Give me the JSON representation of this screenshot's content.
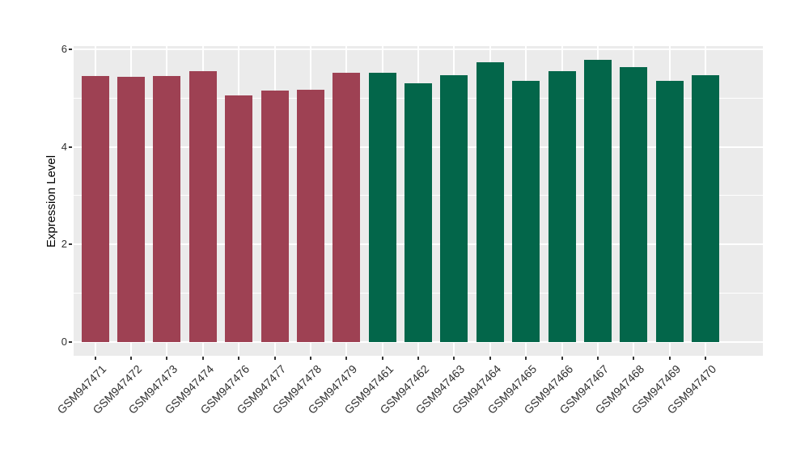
{
  "chart_data": {
    "type": "bar",
    "title": "",
    "xlabel": "",
    "ylabel": "Expression Level",
    "legend_position": "none",
    "grid": "on",
    "categories": [
      "GSM947471",
      "GSM947472",
      "GSM947473",
      "GSM947474",
      "GSM947476",
      "GSM947477",
      "GSM947478",
      "GSM947479",
      "GSM947461",
      "GSM947462",
      "GSM947463",
      "GSM947464",
      "GSM947465",
      "GSM947466",
      "GSM947467",
      "GSM947468",
      "GSM947469",
      "GSM947470"
    ],
    "values": [
      5.46,
      5.44,
      5.45,
      5.55,
      5.06,
      5.15,
      5.17,
      5.52,
      5.52,
      5.3,
      5.48,
      5.73,
      5.36,
      5.56,
      5.78,
      5.63,
      5.35,
      5.47
    ],
    "bar_groups": [
      "group1",
      "group1",
      "group1",
      "group1",
      "group1",
      "group1",
      "group1",
      "group1",
      "group2",
      "group2",
      "group2",
      "group2",
      "group2",
      "group2",
      "group2",
      "group2",
      "group2",
      "group2"
    ],
    "group_colors": {
      "group1": "#9E4153",
      "group2": "#03664A"
    },
    "y_axis": {
      "ticks": [
        0,
        2,
        4,
        6
      ],
      "tick_labels": [
        "0",
        "2",
        "4",
        "6"
      ],
      "minor_ticks": [
        1,
        3,
        5
      ],
      "ylim": [
        0,
        6
      ],
      "expanded_range": [
        -0.29,
        6.07
      ]
    },
    "x_axis": {
      "tick_label_angle_deg": 45
    },
    "style": {
      "panel_background": "#EBEBEB",
      "gridline_color": "#FFFFFF",
      "figure_background": "#FFFFFF",
      "tick_color": "#333333"
    }
  }
}
